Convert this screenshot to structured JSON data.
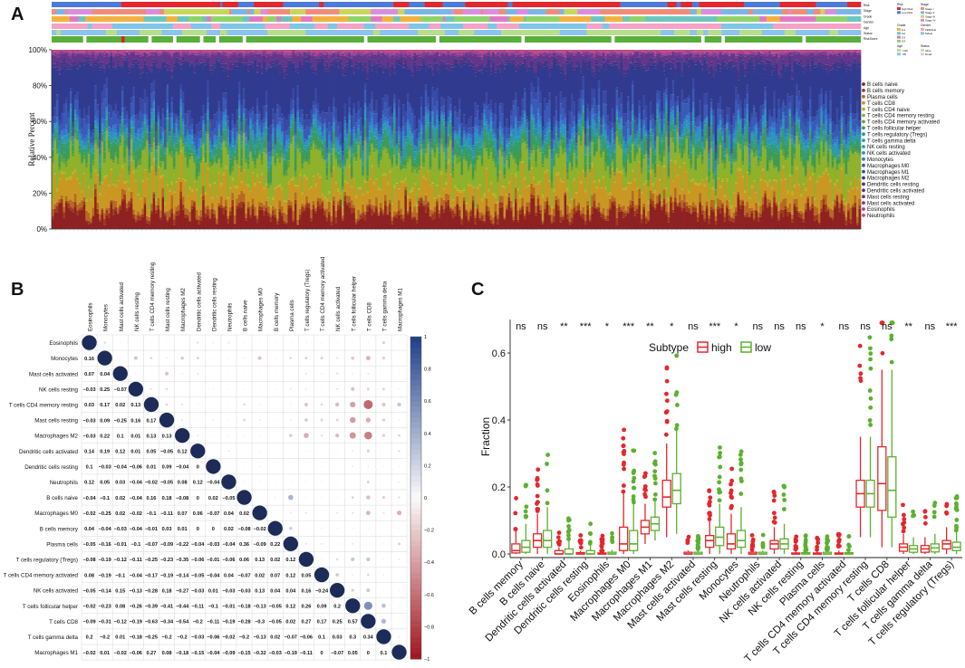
{
  "panels": {
    "a": {
      "label": "A"
    },
    "b": {
      "label": "B"
    },
    "c": {
      "label": "C"
    }
  },
  "colors": {
    "high": "#e4262d",
    "low": "#5bb12f",
    "corr_pos": "#1f3f8a",
    "corr_neg": "#a1141e"
  },
  "chart_data": [
    {
      "type": "bar",
      "panel": "A",
      "stacked": true,
      "samples_count": 360,
      "ylabel": "Relative Percent",
      "ylim": [
        0,
        100
      ],
      "ytick_labels": [
        "0%",
        "20%",
        "40%",
        "60%",
        "80%",
        "100%"
      ],
      "legend_position": "right",
      "series": [
        {
          "name": "B cells naive",
          "color": "#8e2121"
        },
        {
          "name": "B cells memory",
          "color": "#a03a1f"
        },
        {
          "name": "Plasma cells",
          "color": "#b66a22"
        },
        {
          "name": "T cells CD8",
          "color": "#c99823"
        },
        {
          "name": "T cells CD4 naive",
          "color": "#b7b521"
        },
        {
          "name": "T cells CD4 memory resting",
          "color": "#8fb12b"
        },
        {
          "name": "T cells CD4 memory activated",
          "color": "#62a43a"
        },
        {
          "name": "T cells follicular helper",
          "color": "#3f9a55"
        },
        {
          "name": "T cells regulatory (Tregs)",
          "color": "#2e9d7a"
        },
        {
          "name": "T cells gamma delta",
          "color": "#2a9f9e"
        },
        {
          "name": "NK cells resting",
          "color": "#2c97b8"
        },
        {
          "name": "NK cells activated",
          "color": "#2f86c8"
        },
        {
          "name": "Monocytes",
          "color": "#3771c8"
        },
        {
          "name": "Macrophages M0",
          "color": "#3a5ab7"
        },
        {
          "name": "Macrophages M1",
          "color": "#384aa6"
        },
        {
          "name": "Macrophages M2",
          "color": "#303a8e"
        },
        {
          "name": "Dendritic cells resting",
          "color": "#3a3585"
        },
        {
          "name": "Dendritic cells activated",
          "color": "#4c3487"
        },
        {
          "name": "Mast cells resting",
          "color": "#63368b"
        },
        {
          "name": "Mast cells activated",
          "color": "#7c3a8e"
        },
        {
          "name": "Eosinophils",
          "color": "#a2418f"
        },
        {
          "name": "Neutrophils",
          "color": "#c04a86"
        }
      ],
      "mean_values": [
        9,
        2,
        3,
        11,
        1,
        14,
        2,
        5,
        3,
        1,
        3,
        2,
        2,
        6,
        5,
        22,
        1,
        2,
        4,
        1,
        1,
        1
      ],
      "annotation_tracks": [
        "Risk",
        "Stage",
        "Grade",
        "Gender",
        "Age",
        "Status",
        "RiskScore"
      ],
      "annotation_legends": [
        {
          "title": "Risk",
          "items": [
            "high Risk",
            "Low Risk"
          ]
        },
        {
          "title": "Stage",
          "items": [
            "Stage I",
            "Stage II",
            "Stage III",
            "Stage IV"
          ]
        },
        {
          "title": "Grade",
          "items": [
            "G1",
            "G2",
            "G3",
            "G4"
          ]
        },
        {
          "title": "Gender",
          "items": [
            "FEMALE",
            "MALE"
          ]
        },
        {
          "title": "Age",
          "items": [
            "<=65",
            ">65"
          ]
        },
        {
          "title": "Status",
          "items": [
            "Alive",
            "Dead"
          ]
        }
      ]
    },
    {
      "type": "heatmap",
      "panel": "B",
      "style": "correlation circles",
      "labels": [
        "Eosinophils",
        "Monocytes",
        "Mast cells activated",
        "NK cells resting",
        "T cells CD4 memory resting",
        "Mast cells resting",
        "Macrophages M2",
        "Dendritic cells activated",
        "Dendritic cells resting",
        "Neutrophils",
        "B cells naive",
        "Macrophages M0",
        "B cells memory",
        "Plasma cells",
        "T cells regulatory (Tregs)",
        "T cells CD4 memory activated",
        "NK cells activated",
        "T cells follicular helper",
        "T cells CD8",
        "T cells gamma delta",
        "Macrophages M1"
      ],
      "lower_values": [
        [],
        [
          "0.16"
        ],
        [
          "0.07",
          "0.04"
        ],
        [
          "−0.03",
          "0.25",
          "−0.07"
        ],
        [
          "0.03",
          "0.17",
          "0.02",
          "0.13"
        ],
        [
          "−0.03",
          "0.09",
          "−0.25",
          "0.16",
          "0.17"
        ],
        [
          "−0.03",
          "0.22",
          "0.1",
          "0.01",
          "0.13",
          "0.13"
        ],
        [
          "0.14",
          "0.19",
          "0.12",
          "0.01",
          "0.05",
          "−0.05",
          "0.12"
        ],
        [
          "0.1",
          "−0.03",
          "−0.04",
          "−0.06",
          "0.01",
          "0.09",
          "−0.04",
          "0"
        ],
        [
          "0.12",
          "0.05",
          "0.03",
          "−0.04",
          "−0.02",
          "−0.05",
          "0.08",
          "0.12",
          "−0.04"
        ],
        [
          "−0.04",
          "−0.1",
          "0.02",
          "−0.04",
          "0.16",
          "0.18",
          "−0.08",
          "0",
          "0.02",
          "−0.05"
        ],
        [
          "−0.02",
          "−0.25",
          "0.02",
          "−0.02",
          "−0.1",
          "−0.11",
          "0.07",
          "0.06",
          "−0.07",
          "0.04",
          "0.02"
        ],
        [
          "0.04",
          "−0.04",
          "−0.03",
          "−0.04",
          "−0.01",
          "0.03",
          "0.01",
          "0",
          "0",
          "0.02",
          "−0.08",
          "−0.02"
        ],
        [
          "−0.05",
          "−0.16",
          "−0.01",
          "−0.1",
          "−0.07",
          "−0.09",
          "−0.22",
          "−0.04",
          "−0.03",
          "−0.04",
          "0.36",
          "−0.09",
          "0.22"
        ],
        [
          "−0.08",
          "−0.19",
          "−0.12",
          "−0.11",
          "−0.25",
          "−0.23",
          "−0.35",
          "−0.06",
          "−0.01",
          "−0.06",
          "0.06",
          "0.13",
          "0.02",
          "0.12"
        ],
        [
          "0.08",
          "−0.19",
          "−0.1",
          "−0.04",
          "−0.17",
          "−0.19",
          "−0.14",
          "−0.05",
          "−0.04",
          "0.04",
          "−0.07",
          "0.02",
          "0.07",
          "0.12",
          "0.05"
        ],
        [
          "−0.05",
          "−0.14",
          "0.15",
          "−0.13",
          "−0.28",
          "0.18",
          "−0.27",
          "−0.03",
          "0.01",
          "−0.03",
          "−0.03",
          "0.13",
          "0.04",
          "0.04",
          "0.16",
          "−0.24"
        ],
        [
          "−0.02",
          "−0.23",
          "0.08",
          "−0.26",
          "−0.39",
          "−0.41",
          "−0.44",
          "−0.11",
          "−0.1",
          "−0.01",
          "−0.18",
          "−0.13",
          "−0.05",
          "0.12",
          "0.26",
          "0.09",
          "0.2"
        ],
        [
          "−0.09",
          "−0.31",
          "−0.12",
          "−0.19",
          "−0.63",
          "−0.34",
          "−0.54",
          "−0.2",
          "−0.11",
          "−0.19",
          "−0.28",
          "−0.3",
          "−0.05",
          "0.02",
          "0.27",
          "0.17",
          "0.25",
          "0.57"
        ],
        [
          "0.2",
          "−0.2",
          "0.01",
          "−0.18",
          "−0.25",
          "−0.2",
          "−0.2",
          "−0.03",
          "−0.06",
          "−0.02",
          "−0.2",
          "−0.13",
          "0.02",
          "−0.07",
          "−0.06",
          "0.1",
          "0.03",
          "0.3",
          "0.34"
        ],
        [
          "−0.02",
          "0.01",
          "−0.02",
          "−0.06",
          "0.27",
          "0.08",
          "−0.18",
          "−0.15",
          "−0.04",
          "−0.09",
          "−0.15",
          "−0.32",
          "−0.03",
          "−0.19",
          "−0.11",
          "0",
          "−0.07",
          "0.05",
          "0",
          "0.1"
        ]
      ],
      "colorbar_ticks": [
        "1",
        "0.8",
        "0.6",
        "0.4",
        "0.2",
        "0",
        "−0.2",
        "−0.4",
        "−0.6",
        "−0.8",
        "−1"
      ],
      "colorbar_values": [
        1,
        0.8,
        0.6,
        0.4,
        0.2,
        0,
        -0.2,
        -0.4,
        -0.6,
        -0.8,
        -1
      ]
    },
    {
      "type": "box",
      "panel": "C",
      "ylabel": "Fraction",
      "ylim": [
        0,
        0.7
      ],
      "yticks": [
        0.0,
        0.2,
        0.4,
        0.6
      ],
      "ytick_labels": [
        "0.0",
        "0.2",
        "0.4",
        "0.6"
      ],
      "legend_title": "Subtype",
      "legend_position": "top",
      "groups": [
        "high",
        "low"
      ],
      "categories": [
        "B cells memory",
        "B cells naive",
        "Dendritic cells activated",
        "Dendritic cells resting",
        "Eosinophils",
        "Macrophages M0",
        "Macrophages M1",
        "Macrophages M2",
        "Mast cells activated",
        "Mast cells resting",
        "Monocytes",
        "Neutrophils",
        "NK cells activated",
        "NK cells resting",
        "Plasma cells",
        "T cells CD4 memory activated",
        "T cells CD4 memory resting",
        "T cells CD8",
        "T cells follicular helper",
        "T cells gamma delta",
        "T cells regulatory (Tregs)"
      ],
      "significance": [
        "ns",
        "ns",
        "**",
        "***",
        "*",
        "***",
        "**",
        "*",
        "ns",
        "***",
        "*",
        "ns",
        "ns",
        "ns",
        "*",
        "ns",
        "ns",
        "ns",
        "**",
        "ns",
        "***"
      ],
      "high": [
        [
          0,
          0.003,
          0.01,
          0.03,
          0.07
        ],
        [
          0,
          0.02,
          0.04,
          0.06,
          0.12
        ],
        [
          0,
          0,
          0,
          0.01,
          0.02
        ],
        [
          0,
          0,
          0,
          0.004,
          0.01
        ],
        [
          0,
          0,
          0,
          0.003,
          0.008
        ],
        [
          0,
          0.01,
          0.03,
          0.08,
          0.18
        ],
        [
          0.03,
          0.06,
          0.08,
          0.1,
          0.15
        ],
        [
          0.05,
          0.14,
          0.17,
          0.22,
          0.33
        ],
        [
          0,
          0,
          0,
          0.005,
          0.01
        ],
        [
          0,
          0.02,
          0.04,
          0.055,
          0.1
        ],
        [
          0,
          0.015,
          0.03,
          0.06,
          0.12
        ],
        [
          0,
          0,
          0,
          0.005,
          0.01
        ],
        [
          0,
          0.015,
          0.03,
          0.04,
          0.08
        ],
        [
          0,
          0,
          0,
          0.003,
          0.01
        ],
        [
          0,
          0,
          0,
          0.003,
          0.01
        ],
        [
          0,
          0,
          0,
          0.003,
          0.01
        ],
        [
          0.05,
          0.14,
          0.18,
          0.22,
          0.35
        ],
        [
          0.02,
          0.13,
          0.21,
          0.32,
          0.55
        ],
        [
          0,
          0.008,
          0.02,
          0.03,
          0.06
        ],
        [
          0,
          0.005,
          0.015,
          0.025,
          0.05
        ],
        [
          0,
          0.015,
          0.03,
          0.04,
          0.08
        ]
      ],
      "low": [
        [
          0,
          0.005,
          0.02,
          0.04,
          0.09
        ],
        [
          0,
          0.02,
          0.04,
          0.07,
          0.14
        ],
        [
          0,
          0,
          0,
          0.015,
          0.04
        ],
        [
          0,
          0,
          0,
          0.01,
          0.03
        ],
        [
          0,
          0,
          0,
          0.005,
          0.012
        ],
        [
          0,
          0.01,
          0.03,
          0.07,
          0.15
        ],
        [
          0.04,
          0.07,
          0.09,
          0.11,
          0.16
        ],
        [
          0.06,
          0.15,
          0.19,
          0.24,
          0.37
        ],
        [
          0,
          0,
          0,
          0.005,
          0.012
        ],
        [
          0,
          0.025,
          0.05,
          0.08,
          0.15
        ],
        [
          0,
          0.02,
          0.04,
          0.07,
          0.14
        ],
        [
          0,
          0,
          0,
          0.005,
          0.01
        ],
        [
          0,
          0.015,
          0.03,
          0.045,
          0.09
        ],
        [
          0,
          0,
          0,
          0.004,
          0.01
        ],
        [
          0,
          0,
          0,
          0.005,
          0.012
        ],
        [
          0,
          0,
          0,
          0.004,
          0.01
        ],
        [
          0.05,
          0.14,
          0.18,
          0.22,
          0.35
        ],
        [
          0.02,
          0.11,
          0.19,
          0.29,
          0.55
        ],
        [
          0,
          0.005,
          0.015,
          0.025,
          0.05
        ],
        [
          0,
          0.006,
          0.018,
          0.03,
          0.06
        ],
        [
          0,
          0.01,
          0.02,
          0.035,
          0.07
        ]
      ]
    }
  ]
}
